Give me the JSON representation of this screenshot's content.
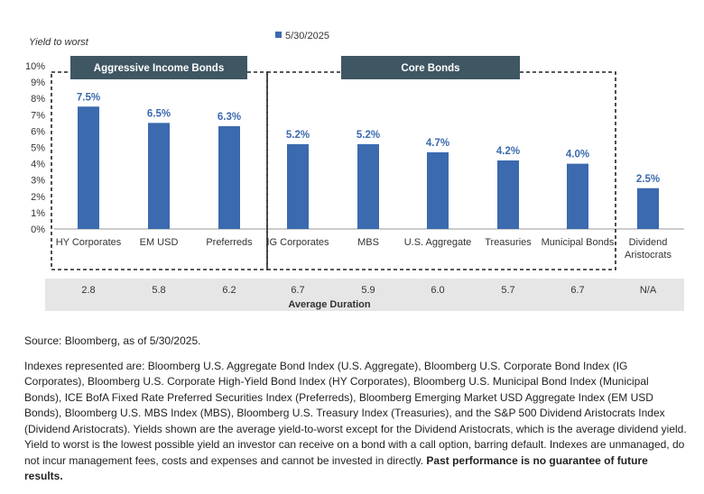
{
  "chart_data": {
    "type": "bar",
    "ylabel": "Yield to worst",
    "ylim": [
      0,
      10
    ],
    "yticks": [
      "0%",
      "1%",
      "2%",
      "3%",
      "4%",
      "5%",
      "6%",
      "7%",
      "8%",
      "9%",
      "10%"
    ],
    "legend": {
      "position": "top-center"
    },
    "categories": [
      "HY Corporates",
      "EM USD",
      "Preferreds",
      "IG Corporates",
      "MBS",
      "U.S. Aggregate",
      "Treasuries",
      "Municipal Bonds",
      "Dividend Aristocrats"
    ],
    "series": [
      {
        "name": "5/30/2025",
        "color": "#3B6AAE",
        "values": [
          7.5,
          6.5,
          6.3,
          5.2,
          5.2,
          4.7,
          4.2,
          4.0,
          2.5
        ],
        "labels": [
          "7.5%",
          "6.5%",
          "6.3%",
          "5.2%",
          "5.2%",
          "4.7%",
          "4.2%",
          "4.0%",
          "2.5%"
        ]
      }
    ],
    "groups": [
      {
        "label": "Aggressive Income Bonds",
        "categories": [
          "HY Corporates",
          "EM USD",
          "Preferreds"
        ]
      },
      {
        "label": "Core Bonds",
        "categories": [
          "IG Corporates",
          "MBS",
          "U.S. Aggregate",
          "Treasuries",
          "Municipal Bonds"
        ]
      }
    ],
    "duration": {
      "title": "Average Duration",
      "values": [
        "2.8",
        "5.8",
        "6.2",
        "6.7",
        "5.9",
        "6.0",
        "5.7",
        "6.7",
        "N/A"
      ]
    }
  },
  "colors": {
    "bar": "#3B6AAE",
    "label": "#3B6AAE",
    "group_header": "#3F5663",
    "duration_band": "#E6E6E6"
  },
  "notes": {
    "source": "Source: Bloomberg, as of 5/30/2025.",
    "disclaimer": "Indexes represented are: Bloomberg U.S. Aggregate Bond Index (U.S. Aggregate), Bloomberg U.S. Corporate Bond Index (IG Corporates), Bloomberg U.S. Corporate  High-Yield Bond Index (HY Corporates), Bloomberg U.S. Municipal Bond Index (Municipal Bonds), ICE BofA Fixed Rate Preferred Securities Index (Preferreds), Bloomberg Emerging  Market USD Aggregate Index (EM USD Bonds), Bloomberg U.S. MBS Index (MBS), Bloomberg U.S. Treasury Index (Treasuries), and the S&P 500 Dividend Aristocrats Index (Dividend Aristocrats). Yields shown are the average yield-to-worst except for the Dividend Aristocrats, which is the average dividend yield. Yield to worst is the lowest possible yield an investor can receive on a bond with a call option, barring default. Indexes are unmanaged, do not incur management fees, costs and expenses and cannot be invested in directly.",
    "emphasis": "Past performance is no guarantee of future results."
  }
}
